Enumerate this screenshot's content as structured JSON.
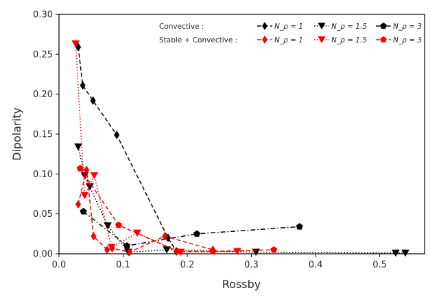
{
  "chart_data": {
    "type": "line",
    "xlabel": "Rossby",
    "ylabel": "Dipolarity",
    "xlim": [
      0.0,
      0.57
    ],
    "ylim": [
      0.0,
      0.3
    ],
    "xticks": [
      "0.0",
      "0.1",
      "0.2",
      "0.3",
      "0.4",
      "0.5"
    ],
    "yticks": [
      "0.00",
      "0.05",
      "0.10",
      "0.15",
      "0.20",
      "0.25",
      "0.30"
    ],
    "grid": false,
    "legend_position": "top-right",
    "legend_rows": [
      {
        "label": "Convective :",
        "entries": [
          "N_ρ = 1",
          "N_ρ = 1.5",
          "N_ρ = 3"
        ]
      },
      {
        "label": "Stable + Convective :",
        "entries": [
          "N_ρ = 1",
          "N_ρ = 1.5",
          "N_ρ = 3"
        ]
      }
    ],
    "series": [
      {
        "name": "N_ρ = 1",
        "group": "Convective :",
        "color": "#000000",
        "linestyle": "dashed",
        "marker": "thin-diamond",
        "points": [
          [
            0.03,
            0.259
          ],
          [
            0.037,
            0.211
          ],
          [
            0.053,
            0.192
          ],
          [
            0.09,
            0.149
          ],
          [
            0.17,
            0.02
          ],
          [
            0.183,
            0.003
          ]
        ]
      },
      {
        "name": "N_ρ = 1.5",
        "group": "Convective :",
        "color": "#000000",
        "linestyle": "dotted",
        "marker": "triangle-down",
        "points": [
          [
            0.03,
            0.134
          ],
          [
            0.04,
            0.098
          ],
          [
            0.048,
            0.084
          ],
          [
            0.076,
            0.035
          ],
          [
            0.108,
            0.002
          ],
          [
            0.168,
            0.005
          ],
          [
            0.307,
            0.002
          ],
          [
            0.525,
            0.001
          ],
          [
            0.54,
            0.001
          ]
        ]
      },
      {
        "name": "N_ρ = 3",
        "group": "Convective :",
        "color": "#000000",
        "linestyle": "dashdot",
        "marker": "pentagon",
        "points": [
          [
            0.038,
            0.053
          ],
          [
            0.106,
            0.01
          ],
          [
            0.215,
            0.025
          ],
          [
            0.375,
            0.034
          ]
        ]
      },
      {
        "name": "N_ρ = 1",
        "group": "Stable + Convective :",
        "color": "#ff0000",
        "linestyle": "dashed",
        "marker": "thin-diamond",
        "points": [
          [
            0.03,
            0.062
          ],
          [
            0.043,
            0.105
          ],
          [
            0.054,
            0.022
          ],
          [
            0.075,
            0.005
          ],
          [
            0.083,
            0.007
          ],
          [
            0.11,
            0.002
          ],
          [
            0.165,
            0.022
          ],
          [
            0.24,
            0.005
          ]
        ]
      },
      {
        "name": "N_ρ = 1.5",
        "group": "Stable + Convective :",
        "color": "#ff0000",
        "linestyle": "dotted",
        "marker": "triangle-down",
        "points": [
          [
            0.026,
            0.263
          ],
          [
            0.04,
            0.073
          ],
          [
            0.055,
            0.098
          ],
          [
            0.082,
            0.008
          ],
          [
            0.122,
            0.026
          ],
          [
            0.19,
            0.002
          ],
          [
            0.278,
            0.003
          ]
        ]
      },
      {
        "name": "N_ρ = 3",
        "group": "Stable + Convective :",
        "color": "#ff0000",
        "linestyle": "dashed",
        "marker": "pentagon",
        "points": [
          [
            0.033,
            0.107
          ],
          [
            0.093,
            0.036
          ],
          [
            0.185,
            0.003
          ],
          [
            0.24,
            0.003
          ],
          [
            0.335,
            0.005
          ]
        ]
      }
    ]
  }
}
